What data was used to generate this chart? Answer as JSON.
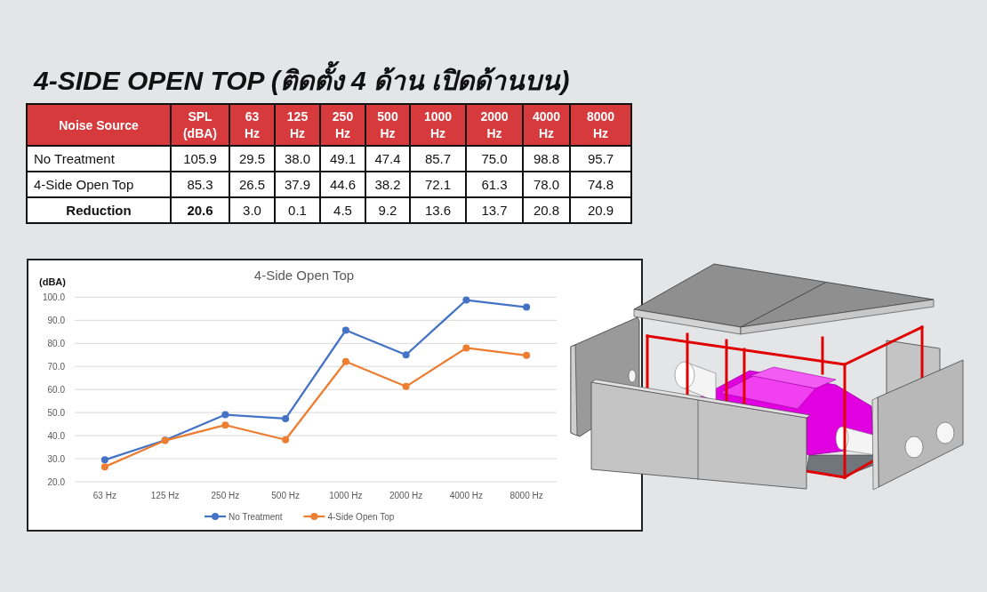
{
  "chart_data": [
    {
      "type": "other",
      "title": "4-SIDE OPEN TOP (ติดตั้ง 4 ด้าน เปิดด้านบน)",
      "legend_title": "Noise Source",
      "categories": [
        "SPL (dBA)",
        "63 Hz",
        "125 Hz",
        "250 Hz",
        "500 Hz",
        "1000 Hz",
        "2000 Hz",
        "4000 Hz",
        "8000 Hz"
      ],
      "series": [
        {
          "name": "No Treatment",
          "values": [
            105.9,
            29.5,
            38.0,
            49.1,
            47.4,
            85.7,
            75.0,
            98.8,
            95.7
          ],
          "value_labels": [
            "105.9",
            "29.5",
            "38.0",
            "49.1",
            "47.4",
            "85.7",
            "75.0",
            "98.8",
            "95.7"
          ]
        },
        {
          "name": "4-Side Open Top",
          "values": [
            85.3,
            26.5,
            37.9,
            44.6,
            38.2,
            72.1,
            61.3,
            78.0,
            74.8
          ],
          "value_labels": [
            "85.3",
            "26.5",
            "37.9",
            "44.6",
            "38.2",
            "72.1",
            "61.3",
            "78.0",
            "74.8"
          ]
        },
        {
          "name": "Reduction",
          "values": [
            20.6,
            3.0,
            0.1,
            4.5,
            9.2,
            13.6,
            13.7,
            20.8,
            20.9
          ],
          "value_labels": [
            "20.6",
            "3.0",
            "0.1",
            "4.5",
            "9.2",
            "13.6",
            "13.7",
            "20.8",
            "20.9"
          ]
        }
      ]
    },
    {
      "type": "line",
      "title": "4-Side Open Top",
      "ylabel": "(dBA)",
      "categories": [
        "63 Hz",
        "125 Hz",
        "250 Hz",
        "500 Hz",
        "1000 Hz",
        "2000 Hz",
        "4000 Hz",
        "8000 Hz"
      ],
      "series": [
        {
          "name": "No Treatment",
          "color": "#4472c4",
          "values": [
            29.5,
            38.0,
            49.1,
            47.4,
            85.7,
            75.0,
            98.8,
            95.7
          ]
        },
        {
          "name": "4-Side Open Top",
          "color": "#ed7d31",
          "values": [
            26.5,
            37.9,
            44.6,
            38.2,
            72.1,
            61.3,
            78.0,
            74.8
          ]
        }
      ],
      "ylim": [
        20,
        100
      ],
      "yticks": [
        {
          "value": 20,
          "label": "20.0"
        },
        {
          "value": 30,
          "label": "30.0"
        },
        {
          "value": 40,
          "label": "40.0"
        },
        {
          "value": 50,
          "label": "50.0"
        },
        {
          "value": 60,
          "label": "60.0"
        },
        {
          "value": 70,
          "label": "70.0"
        },
        {
          "value": 80,
          "label": "80.0"
        },
        {
          "value": 90,
          "label": "90.0"
        },
        {
          "value": 100,
          "label": "100.0"
        }
      ],
      "grid": "y",
      "legend": "bottom",
      "marker": "circle"
    }
  ]
}
